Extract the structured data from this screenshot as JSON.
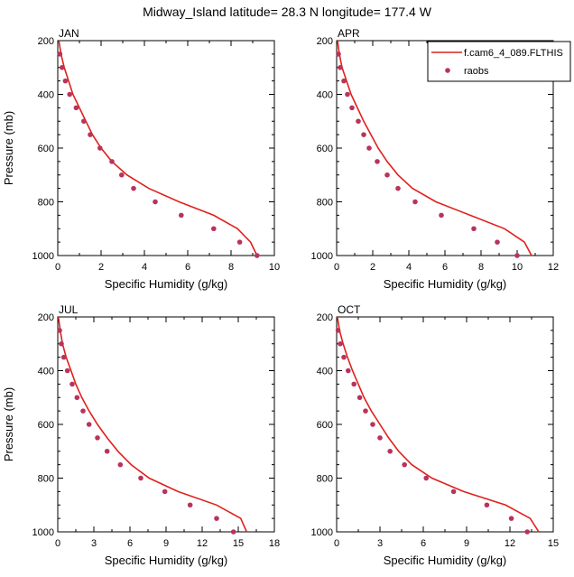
{
  "figure_title": "Midway_Island  latitude= 28.3 N longitude= 177.4 W",
  "legend": {
    "model_label": "f.cam6_4_089.FLTHIS",
    "obs_label": "raobs",
    "model_color": "#e0201c",
    "obs_color": "#b8345a"
  },
  "chart_data": [
    {
      "type": "line",
      "panel_label": "JAN",
      "xlabel": "Specific Humidity (g/kg)",
      "ylabel": "Pressure (mb)",
      "xlim": [
        0,
        10
      ],
      "ylim": [
        1000,
        200
      ],
      "xticks": [
        0,
        2,
        4,
        6,
        8,
        10
      ],
      "yticks": [
        200,
        400,
        600,
        800,
        1000
      ],
      "model": [
        [
          0.05,
          200
        ],
        [
          0.15,
          250
        ],
        [
          0.3,
          300
        ],
        [
          0.5,
          350
        ],
        [
          0.7,
          400
        ],
        [
          1.0,
          450
        ],
        [
          1.3,
          500
        ],
        [
          1.6,
          550
        ],
        [
          2.0,
          600
        ],
        [
          2.5,
          650
        ],
        [
          3.2,
          700
        ],
        [
          4.2,
          750
        ],
        [
          5.6,
          800
        ],
        [
          7.2,
          850
        ],
        [
          8.3,
          900
        ],
        [
          8.9,
          950
        ],
        [
          9.2,
          1000
        ]
      ],
      "raobs": [
        [
          0.1,
          250
        ],
        [
          0.2,
          300
        ],
        [
          0.35,
          350
        ],
        [
          0.55,
          400
        ],
        [
          0.85,
          450
        ],
        [
          1.2,
          500
        ],
        [
          1.5,
          550
        ],
        [
          1.95,
          600
        ],
        [
          2.5,
          650
        ],
        [
          2.95,
          700
        ],
        [
          3.5,
          750
        ],
        [
          4.5,
          800
        ],
        [
          5.7,
          850
        ],
        [
          7.2,
          900
        ],
        [
          8.4,
          950
        ],
        [
          9.2,
          1000
        ]
      ]
    },
    {
      "type": "line",
      "panel_label": "APR",
      "xlabel": "Specific Humidity (g/kg)",
      "ylabel": "",
      "xlim": [
        0,
        12
      ],
      "ylim": [
        1000,
        200
      ],
      "xticks": [
        0,
        2,
        4,
        6,
        8,
        10,
        12
      ],
      "yticks": [
        200,
        400,
        600,
        800,
        1000
      ],
      "model": [
        [
          0.05,
          200
        ],
        [
          0.15,
          250
        ],
        [
          0.3,
          300
        ],
        [
          0.55,
          350
        ],
        [
          0.8,
          400
        ],
        [
          1.15,
          450
        ],
        [
          1.5,
          500
        ],
        [
          1.9,
          550
        ],
        [
          2.3,
          600
        ],
        [
          2.8,
          650
        ],
        [
          3.4,
          700
        ],
        [
          4.2,
          750
        ],
        [
          5.5,
          800
        ],
        [
          7.4,
          850
        ],
        [
          9.3,
          900
        ],
        [
          10.4,
          950
        ],
        [
          10.8,
          1000
        ]
      ],
      "raobs": [
        [
          0.1,
          250
        ],
        [
          0.2,
          300
        ],
        [
          0.4,
          350
        ],
        [
          0.6,
          400
        ],
        [
          0.85,
          450
        ],
        [
          1.2,
          500
        ],
        [
          1.5,
          550
        ],
        [
          1.8,
          600
        ],
        [
          2.25,
          650
        ],
        [
          2.8,
          700
        ],
        [
          3.4,
          750
        ],
        [
          4.35,
          800
        ],
        [
          5.8,
          850
        ],
        [
          7.6,
          900
        ],
        [
          8.9,
          950
        ],
        [
          10.0,
          1000
        ]
      ]
    },
    {
      "type": "line",
      "panel_label": "JUL",
      "xlabel": "Specific Humidity (g/kg)",
      "ylabel": "Pressure (mb)",
      "xlim": [
        0,
        18
      ],
      "ylim": [
        1000,
        200
      ],
      "xticks": [
        0,
        3,
        6,
        9,
        12,
        15,
        18
      ],
      "yticks": [
        200,
        400,
        600,
        800,
        1000
      ],
      "model": [
        [
          0.05,
          200
        ],
        [
          0.2,
          250
        ],
        [
          0.4,
          300
        ],
        [
          0.7,
          350
        ],
        [
          1.1,
          400
        ],
        [
          1.5,
          450
        ],
        [
          2.0,
          500
        ],
        [
          2.6,
          550
        ],
        [
          3.3,
          600
        ],
        [
          4.1,
          650
        ],
        [
          5.0,
          700
        ],
        [
          6.1,
          750
        ],
        [
          7.6,
          800
        ],
        [
          10.0,
          850
        ],
        [
          13.2,
          900
        ],
        [
          15.2,
          950
        ],
        [
          15.7,
          1000
        ]
      ],
      "raobs": [
        [
          0.15,
          250
        ],
        [
          0.3,
          300
        ],
        [
          0.5,
          350
        ],
        [
          0.8,
          400
        ],
        [
          1.2,
          450
        ],
        [
          1.6,
          500
        ],
        [
          2.1,
          550
        ],
        [
          2.6,
          600
        ],
        [
          3.3,
          650
        ],
        [
          4.1,
          700
        ],
        [
          5.2,
          750
        ],
        [
          6.9,
          800
        ],
        [
          8.9,
          850
        ],
        [
          11.0,
          900
        ],
        [
          13.2,
          950
        ],
        [
          14.6,
          1000
        ]
      ]
    },
    {
      "type": "line",
      "panel_label": "OCT",
      "xlabel": "Specific Humidity (g/kg)",
      "ylabel": "",
      "xlim": [
        0,
        15
      ],
      "ylim": [
        1000,
        200
      ],
      "xticks": [
        0,
        3,
        6,
        9,
        12,
        15
      ],
      "yticks": [
        200,
        400,
        600,
        800,
        1000
      ],
      "model": [
        [
          0.05,
          200
        ],
        [
          0.2,
          250
        ],
        [
          0.45,
          300
        ],
        [
          0.75,
          350
        ],
        [
          1.1,
          400
        ],
        [
          1.5,
          450
        ],
        [
          1.9,
          500
        ],
        [
          2.4,
          550
        ],
        [
          3.0,
          600
        ],
        [
          3.6,
          650
        ],
        [
          4.3,
          700
        ],
        [
          5.2,
          750
        ],
        [
          6.6,
          800
        ],
        [
          8.8,
          850
        ],
        [
          11.7,
          900
        ],
        [
          13.4,
          950
        ],
        [
          14.0,
          1000
        ]
      ],
      "raobs": [
        [
          0.1,
          250
        ],
        [
          0.25,
          300
        ],
        [
          0.5,
          350
        ],
        [
          0.8,
          400
        ],
        [
          1.2,
          450
        ],
        [
          1.6,
          500
        ],
        [
          2.0,
          550
        ],
        [
          2.5,
          600
        ],
        [
          3.0,
          650
        ],
        [
          3.7,
          700
        ],
        [
          4.7,
          750
        ],
        [
          6.2,
          800
        ],
        [
          8.1,
          850
        ],
        [
          10.4,
          900
        ],
        [
          12.1,
          950
        ],
        [
          13.2,
          1000
        ]
      ]
    }
  ]
}
